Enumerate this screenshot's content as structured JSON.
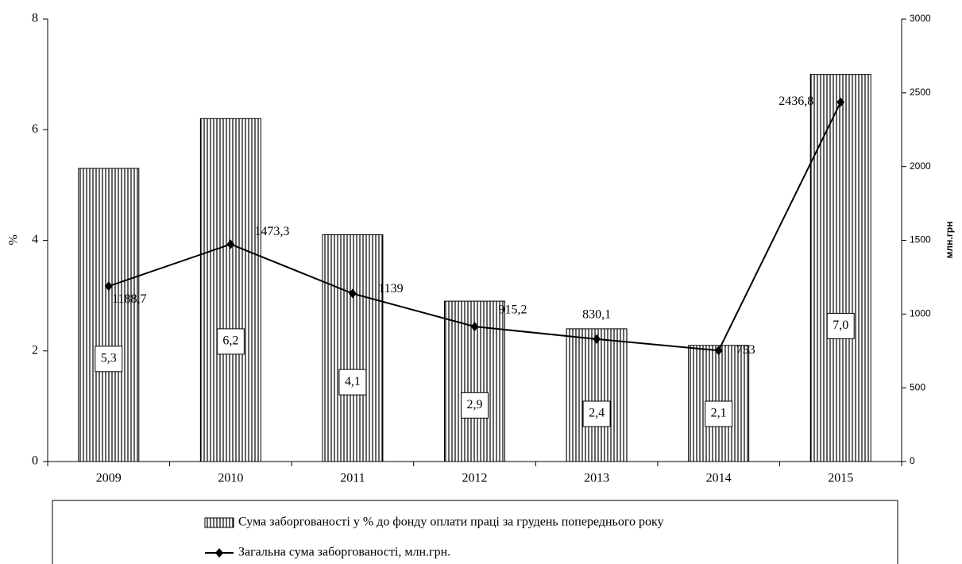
{
  "chart_data": {
    "type": "bar",
    "categories": [
      "2009",
      "2010",
      "2011",
      "2012",
      "2013",
      "2014",
      "2015"
    ],
    "ylabel": "%",
    "y2label": "млн.грн",
    "ylim": [
      0,
      8
    ],
    "yticks": [
      0,
      2,
      4,
      6,
      8
    ],
    "y2lim": [
      0,
      3000
    ],
    "y2ticks": [
      0,
      500,
      1000,
      1500,
      2000,
      2500,
      3000
    ],
    "series": [
      {
        "name": "Сума заборгованості у % до фонду оплати праці за грудень попереднього року",
        "type": "bar",
        "color": "#000000",
        "values": [
          5.3,
          6.2,
          4.1,
          2.9,
          2.4,
          2.1,
          7.0
        ],
        "value_labels": [
          "5,3",
          "6,2",
          "4,1",
          "2,9",
          "2,4",
          "2,1",
          "7,0"
        ]
      },
      {
        "name": "Загальна сума заборгованості, млн.грн.",
        "type": "line",
        "axis": "y2",
        "color": "#000000",
        "values": [
          1188.7,
          1473.3,
          1139,
          915.2,
          830.1,
          753,
          2436.8
        ],
        "value_labels": [
          "1188,7",
          "1473,3",
          "1139",
          "915,2",
          "830,1",
          "753",
          "2436,8"
        ]
      }
    ],
    "legend": "bottom"
  }
}
